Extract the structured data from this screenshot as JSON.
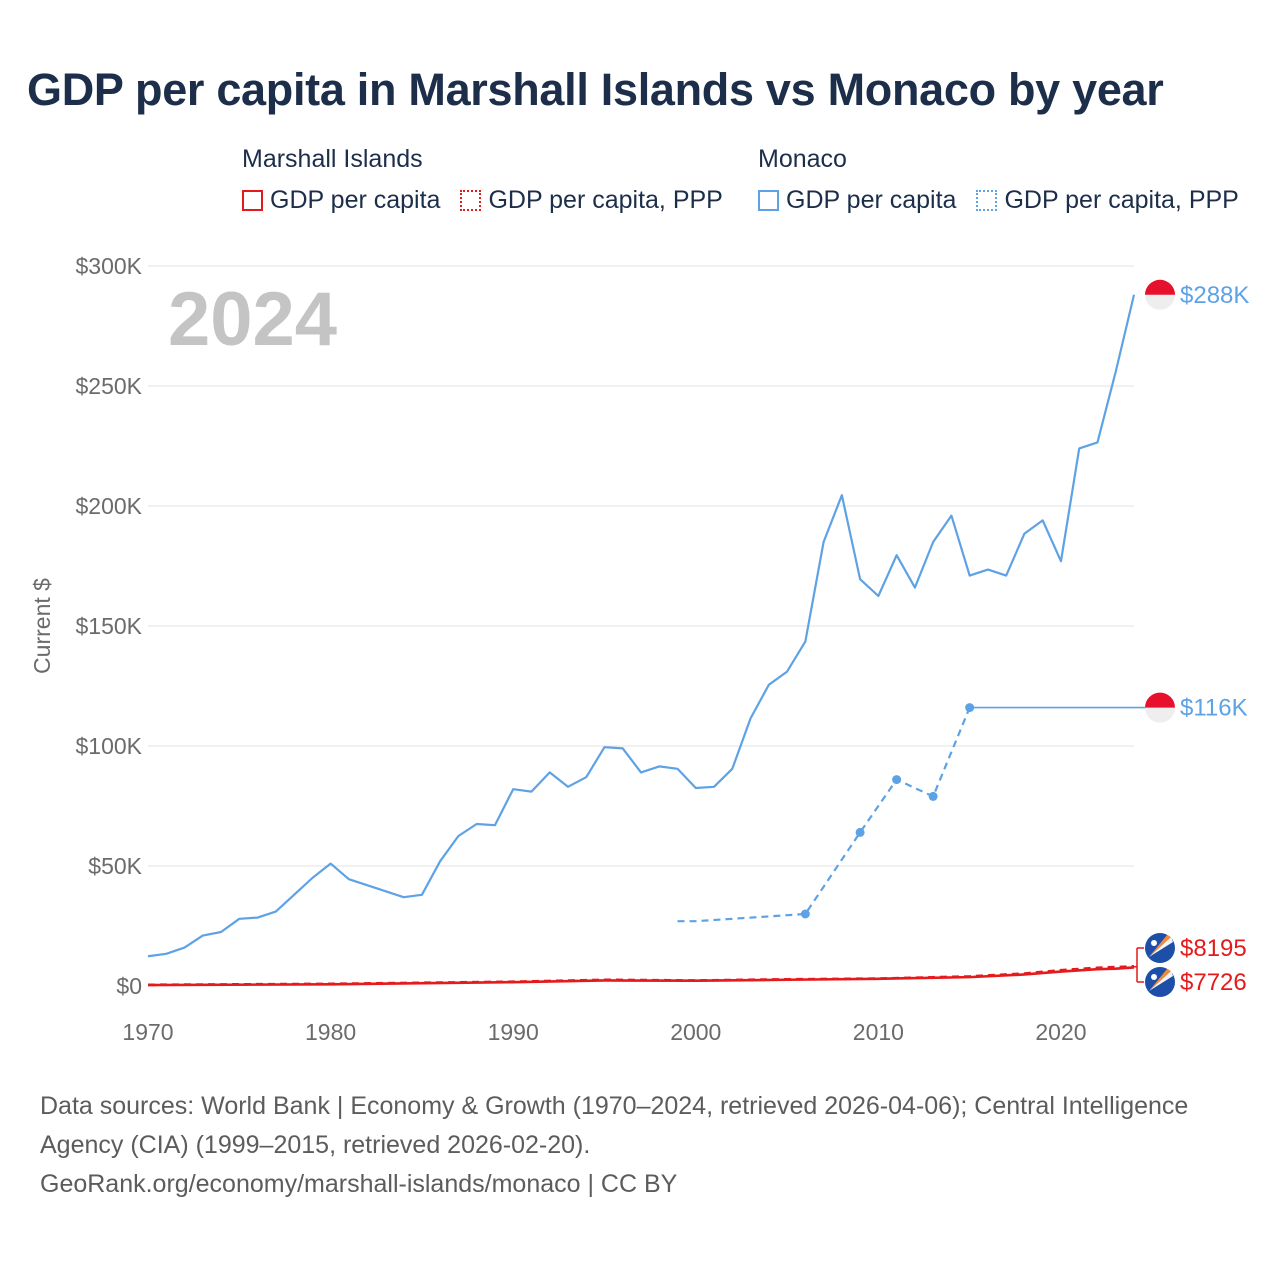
{
  "title": "GDP per capita in Marshall Islands vs Monaco by year",
  "legend": [
    {
      "heading": "Marshall Islands",
      "items": [
        {
          "label": "GDP per capita",
          "color": "#e41a1c",
          "style": "solid"
        },
        {
          "label": "GDP per capita, PPP",
          "color": "#e41a1c",
          "style": "dotted"
        }
      ]
    },
    {
      "heading": "Monaco",
      "items": [
        {
          "label": "GDP per capita",
          "color": "#5ea2e6",
          "style": "solid"
        },
        {
          "label": "GDP per capita, PPP",
          "color": "#5ea2e6",
          "style": "dotted"
        }
      ]
    }
  ],
  "chart_data": {
    "type": "line",
    "year_label": "2024",
    "ylabel": "Current $",
    "xlabel": "",
    "xlim": [
      1970,
      2024
    ],
    "ylim": [
      0,
      300000
    ],
    "x_ticks": [
      1970,
      1980,
      1990,
      2000,
      2010,
      2020
    ],
    "y_ticks": [
      {
        "value": 0,
        "label": "$0"
      },
      {
        "value": 50000,
        "label": "$50K"
      },
      {
        "value": 100000,
        "label": "$100K"
      },
      {
        "value": 150000,
        "label": "$150K"
      },
      {
        "value": 200000,
        "label": "$200K"
      },
      {
        "value": 250000,
        "label": "$250K"
      },
      {
        "value": 300000,
        "label": "$300K"
      }
    ],
    "grid": true,
    "series": [
      {
        "name": "Monaco GDP per capita",
        "color": "#5ea2e6",
        "dash": "solid",
        "end_label": "$288K",
        "flag": "monaco",
        "points": [
          [
            1970,
            12400
          ],
          [
            1971,
            13400
          ],
          [
            1972,
            16000
          ],
          [
            1973,
            21000
          ],
          [
            1974,
            22500
          ],
          [
            1975,
            28000
          ],
          [
            1976,
            28500
          ],
          [
            1977,
            31000
          ],
          [
            1978,
            38000
          ],
          [
            1979,
            45000
          ],
          [
            1980,
            51000
          ],
          [
            1981,
            44500
          ],
          [
            1982,
            42000
          ],
          [
            1983,
            39500
          ],
          [
            1984,
            37000
          ],
          [
            1985,
            38000
          ],
          [
            1986,
            52000
          ],
          [
            1987,
            62500
          ],
          [
            1988,
            67500
          ],
          [
            1989,
            67000
          ],
          [
            1990,
            82000
          ],
          [
            1991,
            81000
          ],
          [
            1992,
            89000
          ],
          [
            1993,
            83000
          ],
          [
            1994,
            87000
          ],
          [
            1995,
            99500
          ],
          [
            1996,
            99000
          ],
          [
            1997,
            89000
          ],
          [
            1998,
            91500
          ],
          [
            1999,
            90500
          ],
          [
            2000,
            82500
          ],
          [
            2001,
            83000
          ],
          [
            2002,
            90500
          ],
          [
            2003,
            111500
          ],
          [
            2004,
            125500
          ],
          [
            2005,
            131000
          ],
          [
            2006,
            143500
          ],
          [
            2007,
            185000
          ],
          [
            2008,
            204500
          ],
          [
            2009,
            169500
          ],
          [
            2010,
            162500
          ],
          [
            2011,
            179500
          ],
          [
            2012,
            166000
          ],
          [
            2013,
            185000
          ],
          [
            2014,
            196000
          ],
          [
            2015,
            171000
          ],
          [
            2016,
            173500
          ],
          [
            2017,
            171000
          ],
          [
            2018,
            188500
          ],
          [
            2019,
            194000
          ],
          [
            2020,
            177000
          ],
          [
            2021,
            224000
          ],
          [
            2022,
            226500
          ],
          [
            2023,
            256000
          ],
          [
            2024,
            288000
          ]
        ]
      },
      {
        "name": "Monaco GDP per capita, PPP",
        "color": "#5ea2e6",
        "dash": "dashed",
        "end_label": "$116K",
        "flag": "monaco",
        "extend_flat": true,
        "markers": [
          2006,
          2009,
          2011,
          2013,
          2015
        ],
        "points": [
          [
            1999,
            27000
          ],
          [
            2000,
            27000
          ],
          [
            2006,
            30000
          ],
          [
            2009,
            64000
          ],
          [
            2011,
            86000
          ],
          [
            2013,
            79000
          ],
          [
            2015,
            116000
          ]
        ]
      },
      {
        "name": "Marshall Islands GDP per capita, PPP",
        "color": "#e41a1c",
        "dash": "dashed",
        "end_label": "$8195",
        "flag": "marshall-islands",
        "points": [
          [
            1970,
            500
          ],
          [
            1980,
            900
          ],
          [
            1990,
            1800
          ],
          [
            1995,
            2600
          ],
          [
            2000,
            2300
          ],
          [
            2005,
            2800
          ],
          [
            2010,
            3100
          ],
          [
            2015,
            4000
          ],
          [
            2018,
            5200
          ],
          [
            2020,
            6600
          ],
          [
            2022,
            7600
          ],
          [
            2023,
            7900
          ],
          [
            2024,
            8195
          ]
        ]
      },
      {
        "name": "Marshall Islands GDP per capita",
        "color": "#e41a1c",
        "dash": "solid",
        "end_label": "$7726",
        "flag": "marshall-islands",
        "points": [
          [
            1970,
            400
          ],
          [
            1980,
            700
          ],
          [
            1990,
            1600
          ],
          [
            1995,
            2300
          ],
          [
            2000,
            2200
          ],
          [
            2005,
            2600
          ],
          [
            2010,
            3000
          ],
          [
            2015,
            3700
          ],
          [
            2018,
            4800
          ],
          [
            2020,
            6000
          ],
          [
            2022,
            7000
          ],
          [
            2023,
            7200
          ],
          [
            2024,
            7726
          ]
        ]
      }
    ]
  },
  "footer": {
    "sources": "Data sources: World Bank | Economy & Growth (1970–2024, retrieved 2026-04-06); Central Intelligence Agency (CIA) (1999–2015, retrieved 2026-02-20).",
    "credit": "GeoRank.org/economy/marshall-islands/monaco | CC BY"
  }
}
